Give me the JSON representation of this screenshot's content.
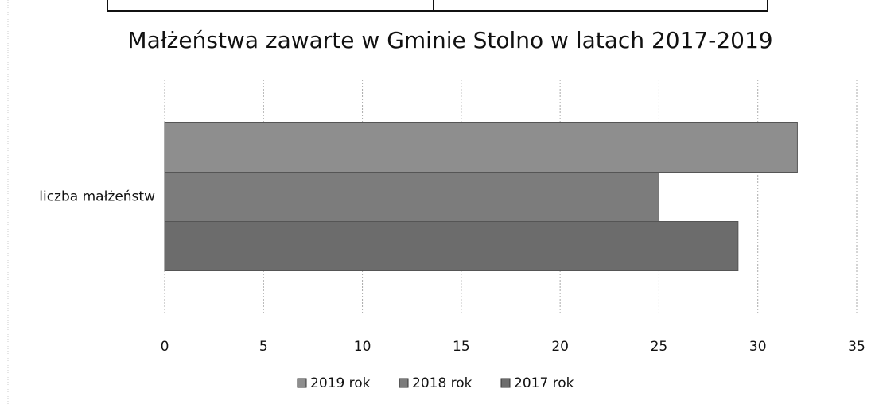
{
  "chart_data": {
    "type": "bar",
    "orientation": "horizontal",
    "title": "Małżeństwa zawarte w Gminie Stolno w latach 2017-2019",
    "categories": [
      "liczba małżeństw"
    ],
    "series": [
      {
        "name": "2019 rok",
        "color": "#8e8e8e",
        "values": [
          32
        ]
      },
      {
        "name": "2018 rok",
        "color": "#7c7c7c",
        "values": [
          25
        ]
      },
      {
        "name": "2017 rok",
        "color": "#6c6c6c",
        "values": [
          29
        ]
      }
    ],
    "xlim": [
      0,
      35
    ],
    "xticks": [
      0,
      5,
      10,
      15,
      20,
      25,
      30,
      35
    ],
    "grid": true,
    "legend": "bottom"
  }
}
